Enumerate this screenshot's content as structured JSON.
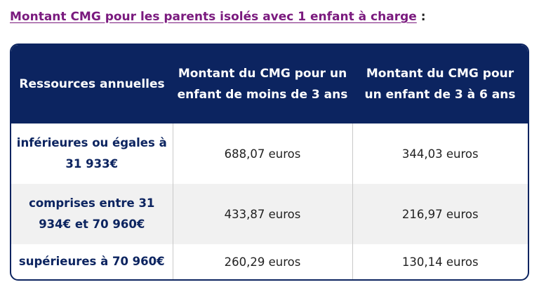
{
  "heading": {
    "link_text": "Montant CMG pour les parents isolés avec 1 enfant à charge",
    "suffix": " :"
  },
  "table": {
    "headers": [
      "Ressources annuelles",
      "Montant du CMG pour un enfant de moins de 3 ans",
      "Montant du CMG pour un enfant de 3 à 6 ans"
    ],
    "rows": [
      {
        "label": "inférieures ou égales à 31 933€",
        "under3": "688,07 euros",
        "from3to6": "344,03 euros"
      },
      {
        "label": "comprises entre 31 934€ et 70 960€",
        "under3": "433,87 euros",
        "from3to6": "216,97 euros"
      },
      {
        "label": "supérieures à 70 960€",
        "under3": "260,29 euros",
        "from3to6": "130,14 euros"
      }
    ]
  },
  "colors": {
    "header_bg": "#0c2460",
    "link": "#7a1a7e",
    "label_text": "#0c2460",
    "alt_row_bg": "#f1f1f1"
  }
}
